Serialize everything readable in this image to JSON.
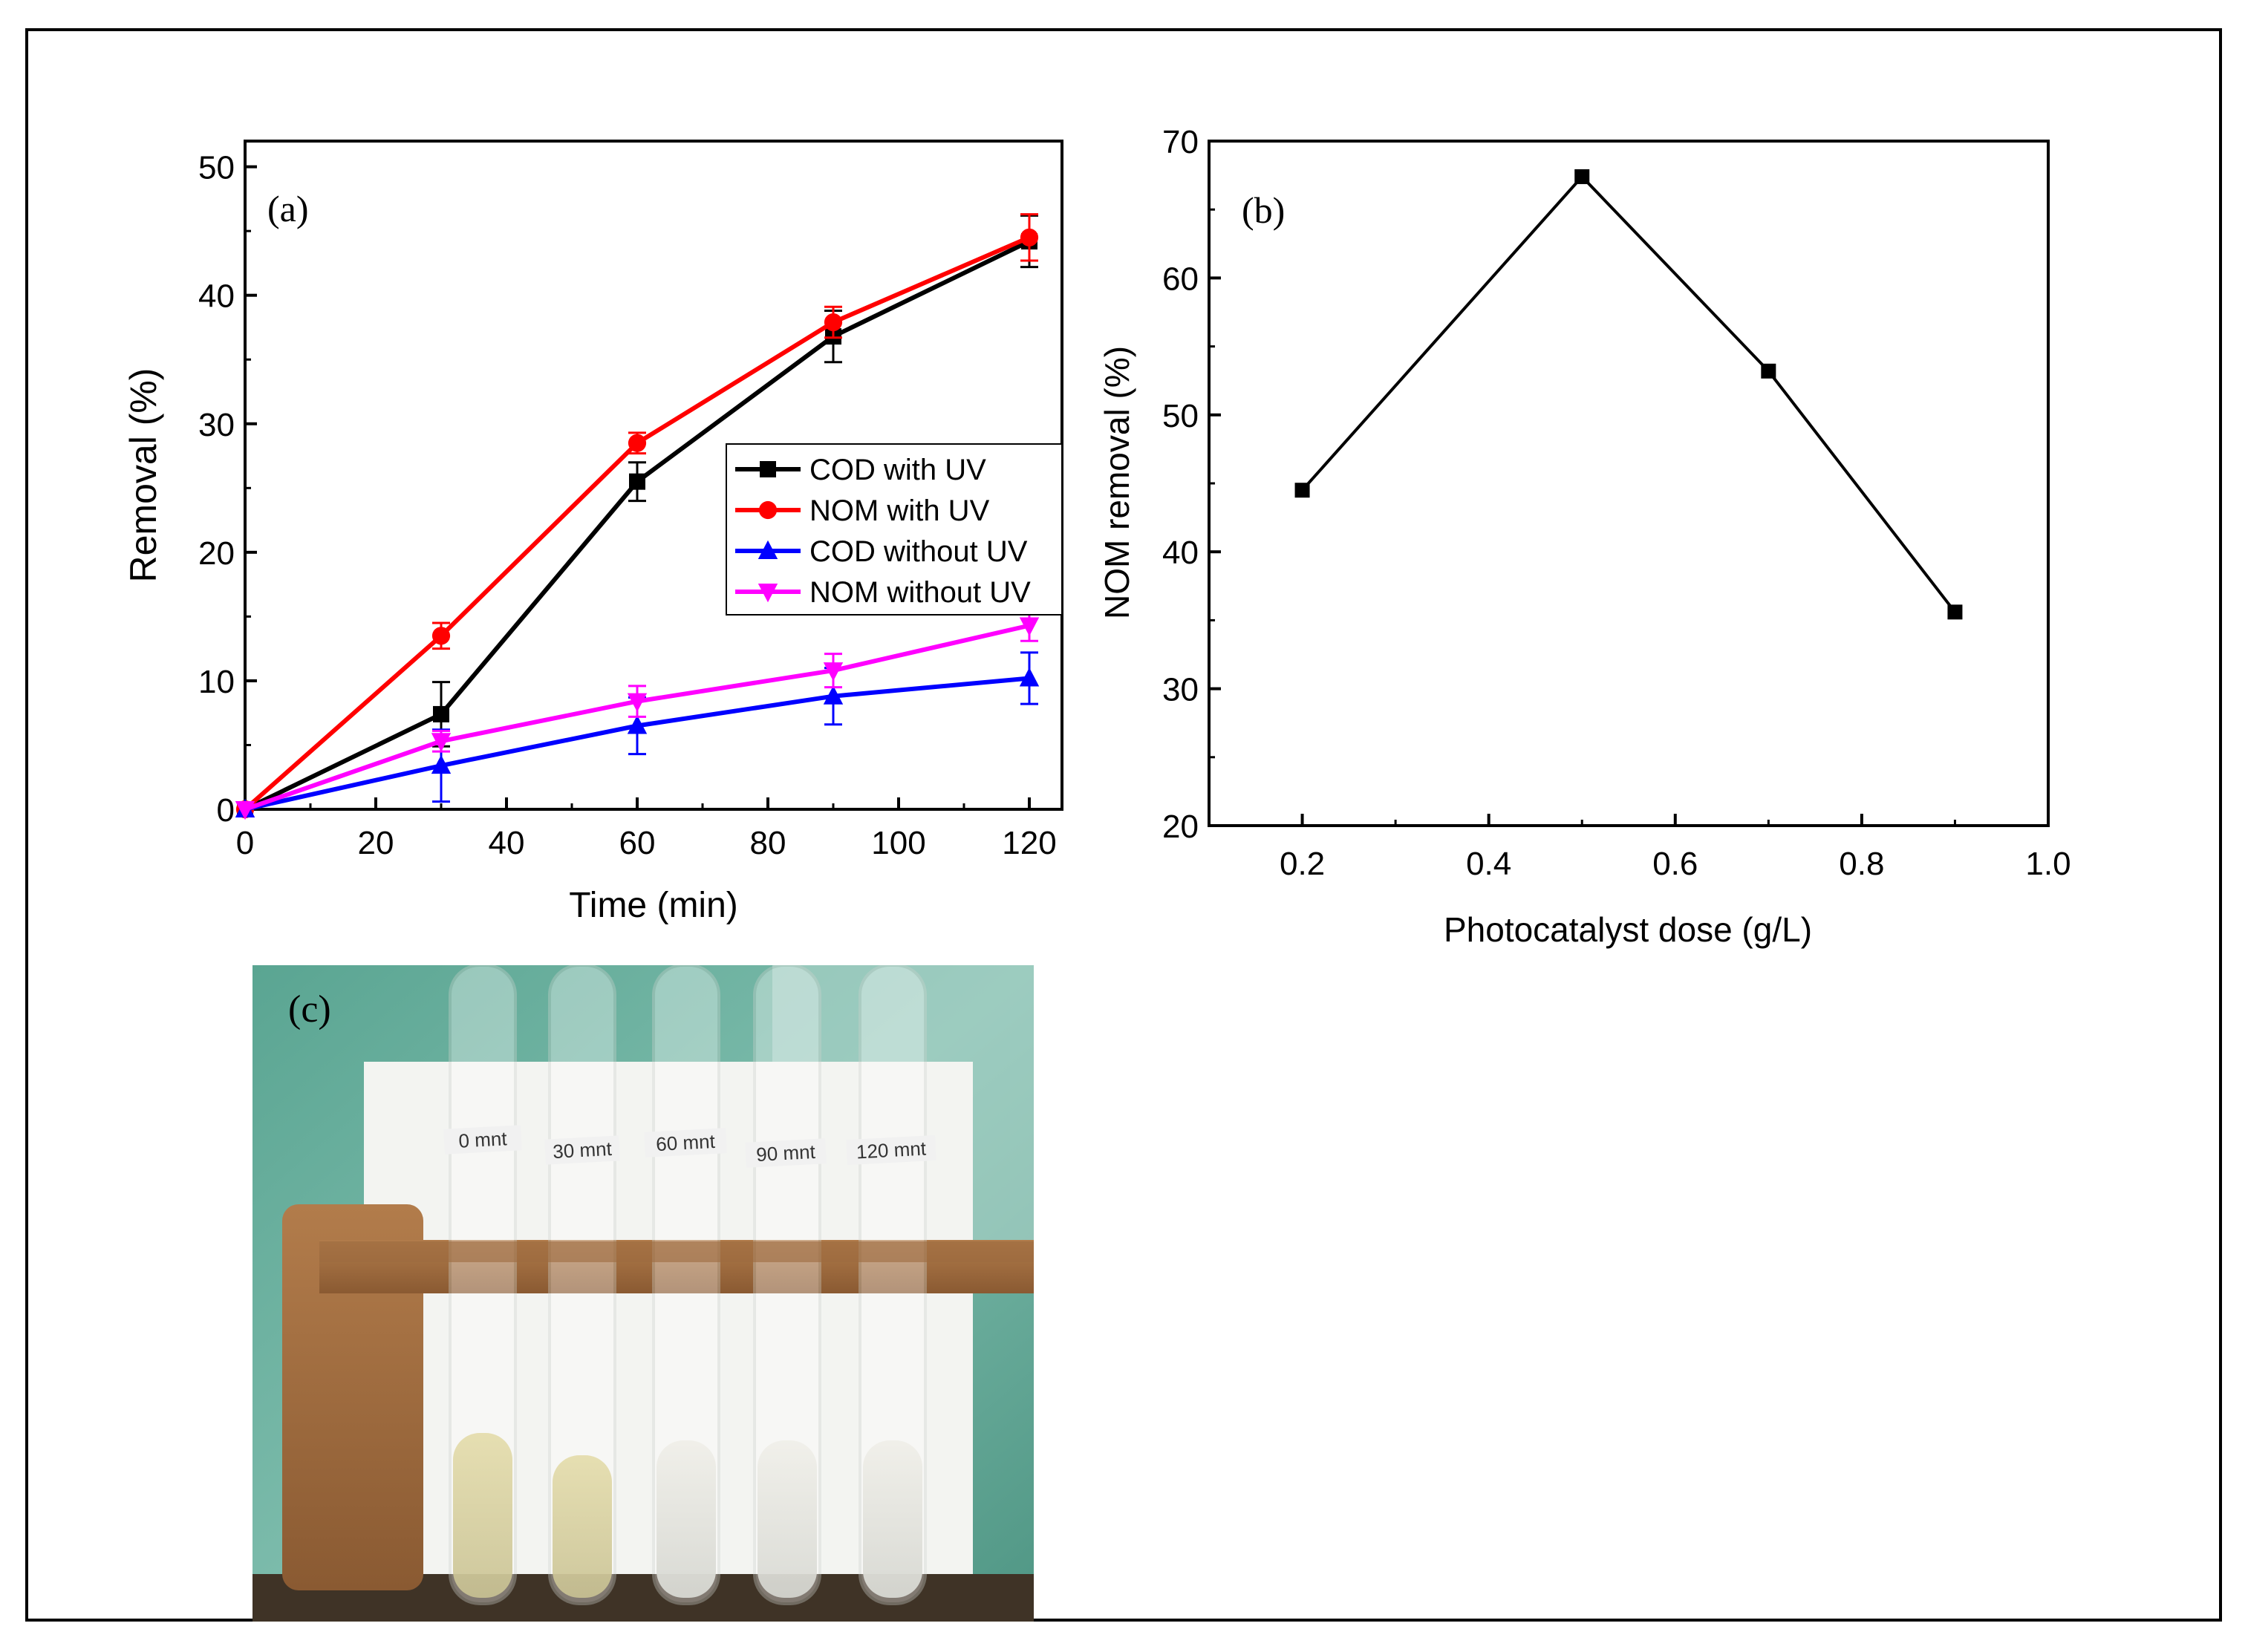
{
  "chart_data": [
    {
      "type": "line",
      "panel_label": "(a)",
      "xlabel": "Time (min)",
      "ylabel": "Removal (%)",
      "xlim": [
        0,
        125
      ],
      "ylim": [
        0,
        52
      ],
      "xticks": [
        0,
        20,
        40,
        60,
        80,
        100,
        120
      ],
      "yticks": [
        0,
        10,
        20,
        30,
        40,
        50
      ],
      "x": [
        0,
        30,
        60,
        90,
        120
      ],
      "legend_position": "center-right",
      "series": [
        {
          "name": "COD with UV",
          "color": "#000000",
          "marker": "square",
          "values": [
            0,
            7.4,
            25.5,
            36.8,
            44.2
          ],
          "errors": [
            0,
            2.5,
            1.5,
            2.0,
            2.0
          ]
        },
        {
          "name": "NOM with UV",
          "color": "#ff0000",
          "marker": "circle",
          "values": [
            0,
            13.5,
            28.5,
            37.9,
            44.5
          ],
          "errors": [
            0,
            1.0,
            0.8,
            1.2,
            1.8
          ]
        },
        {
          "name": "COD without UV",
          "color": "#0000ff",
          "marker": "triangle-up",
          "values": [
            0,
            3.4,
            6.5,
            8.8,
            10.2
          ],
          "errors": [
            0,
            2.8,
            2.2,
            2.2,
            2.0
          ]
        },
        {
          "name": "NOM without UV",
          "color": "#ff00ff",
          "marker": "triangle-down",
          "values": [
            0,
            5.3,
            8.4,
            10.8,
            14.3
          ],
          "errors": [
            0,
            0.8,
            1.2,
            1.3,
            1.2
          ]
        }
      ]
    },
    {
      "type": "line",
      "panel_label": "(b)",
      "xlabel": "Photocatalyst dose (g/L)",
      "ylabel": "NOM removal (%)",
      "xlim": [
        0.1,
        1.0
      ],
      "ylim": [
        20,
        70
      ],
      "xticks": [
        0.2,
        0.4,
        0.6,
        0.8,
        1.0
      ],
      "xtick_labels": [
        "0.2",
        "0.4",
        "0.6",
        "0.8",
        "1.0"
      ],
      "yticks": [
        20,
        30,
        40,
        50,
        60,
        70
      ],
      "x": [
        0.2,
        0.5,
        0.7,
        0.9
      ],
      "series": [
        {
          "name": "NOM removal",
          "color": "#000000",
          "marker": "square",
          "values": [
            44.5,
            67.4,
            53.2,
            35.6
          ]
        }
      ]
    }
  ],
  "photo": {
    "panel_label": "(c)",
    "tube_labels": [
      "0 mnt",
      "30 mnt",
      "60 mnt",
      "90 mnt",
      "120 mnt"
    ]
  }
}
